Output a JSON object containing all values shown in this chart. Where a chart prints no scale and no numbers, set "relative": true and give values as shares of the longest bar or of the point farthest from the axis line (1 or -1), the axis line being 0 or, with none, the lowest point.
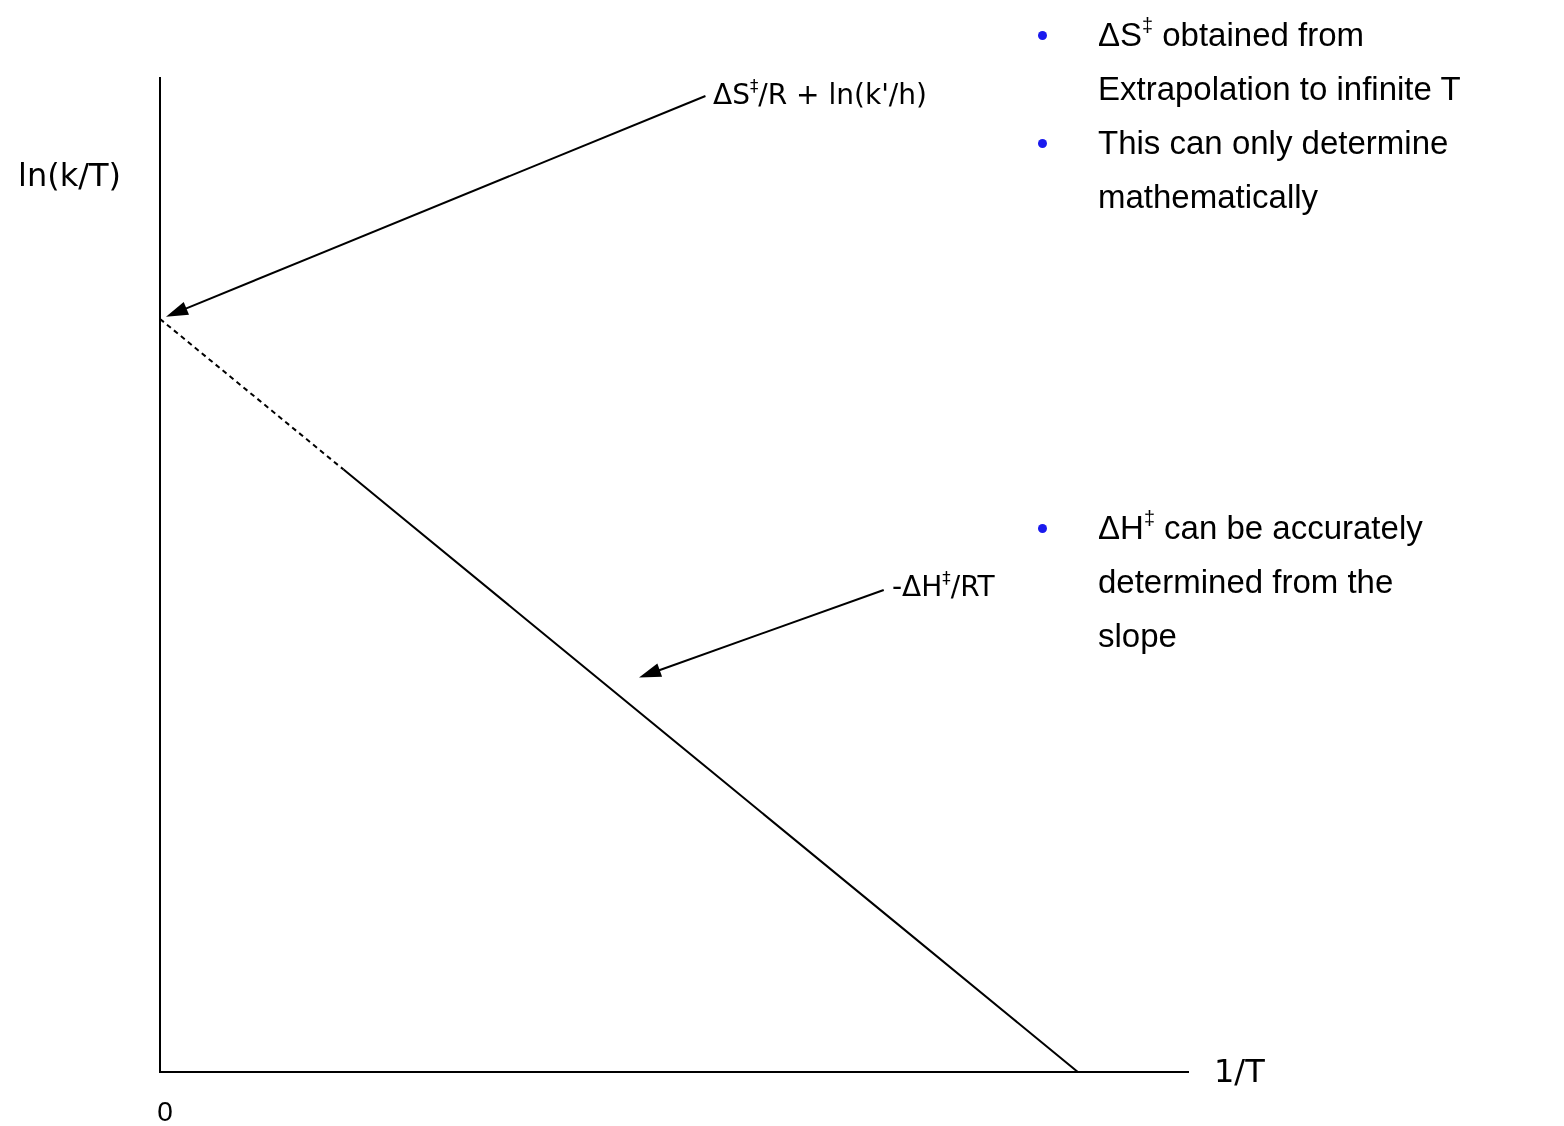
{
  "chart_data": {
    "type": "line",
    "relative": true,
    "xlabel": "1/T",
    "ylabel": "ln(k/T)",
    "categories": [
      null,
      null,
      null,
      null,
      null,
      null
    ],
    "series": [
      {
        "color": "#000000",
        "line_style": "dashed",
        "values": [
          1,
          0.8,
          null,
          null,
          null,
          null
        ]
      },
      {
        "color": "#000000",
        "values": [
          null,
          0.8,
          0.6,
          0.4,
          0.2,
          0
        ]
      }
    ],
    "marker": "none",
    "annotations": [
      "ΔS$^{‡}$/R + ln(k'/h)",
      "ΔS$^{‡}$ obtained from Extrapolation to infinite T",
      "This can only determine mathematically",
      "-ΔH$^{‡}$/RT",
      "ΔH$^{‡}$ can be accurately determined from the slope",
      "0"
    ]
  }
}
